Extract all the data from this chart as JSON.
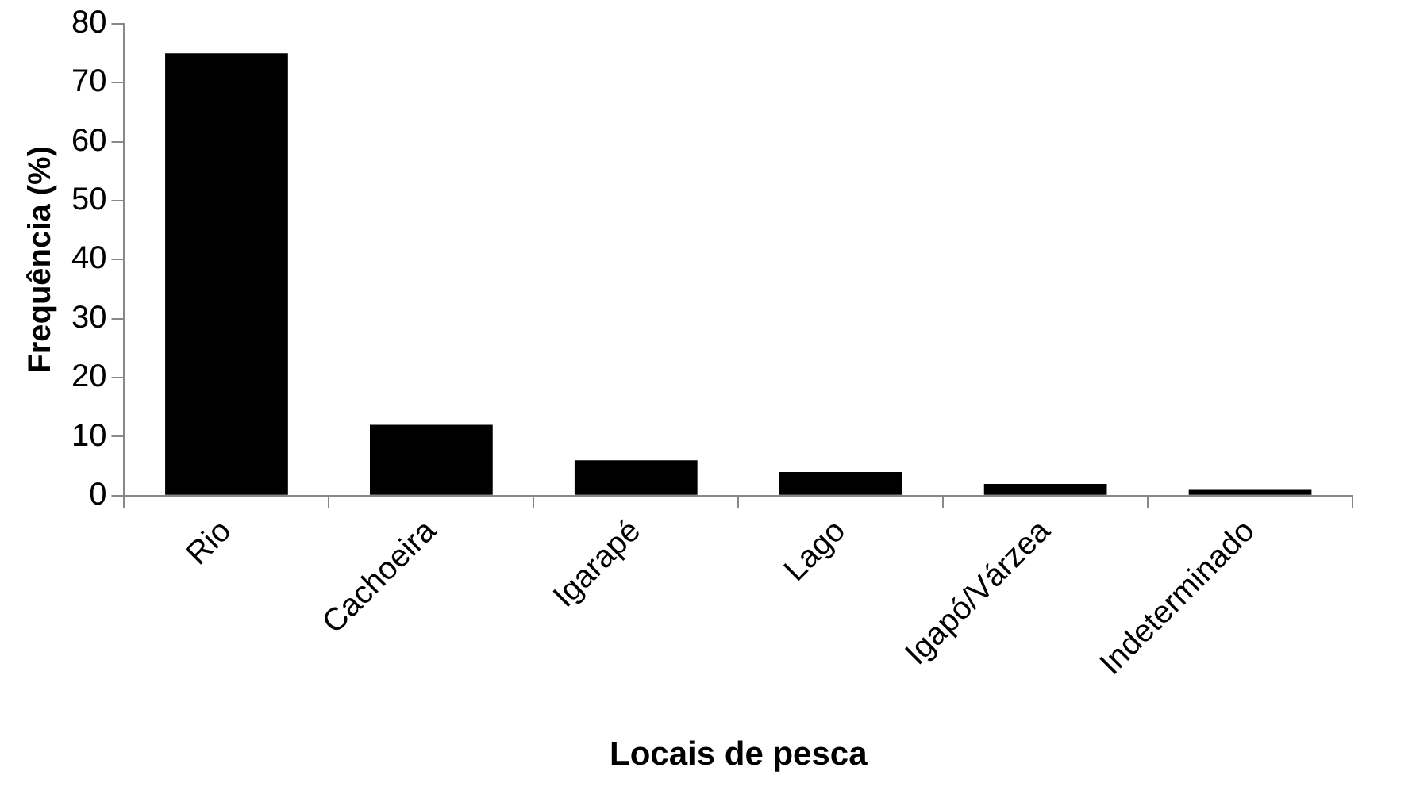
{
  "chart_data": {
    "type": "bar",
    "xlabel": "Locais de pesca",
    "ylabel": "Frequência (%)",
    "categories": [
      "Rio",
      "Cachoeira",
      "Igarapé",
      "Lago",
      "Igapó/Várzea",
      "Indeterminado"
    ],
    "values": [
      75,
      12,
      6,
      4,
      2,
      1
    ],
    "color": "#000000",
    "ylim": [
      0,
      80
    ],
    "yticks": [
      0,
      10,
      20,
      30,
      40,
      50,
      60,
      70,
      80
    ],
    "grid": false,
    "legend": false
  }
}
